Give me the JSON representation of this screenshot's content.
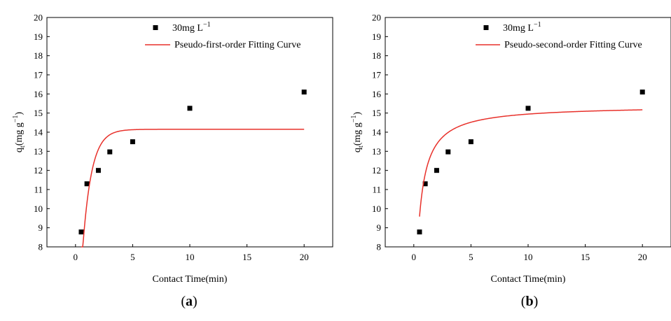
{
  "chart_data": [
    {
      "type": "scatter",
      "panel_label": "a",
      "xlabel": "Contact Time(min)",
      "ylabel": "q",
      "ylabel_sub": "t",
      "ylabel_unit": "(mg g",
      "ylabel_unit_exp": "−1",
      "ylabel_unit_close": ")",
      "xlim": [
        -2.5,
        22.5
      ],
      "ylim": [
        8,
        20
      ],
      "x_ticks": [
        0,
        5,
        10,
        15,
        20
      ],
      "y_ticks": [
        8,
        9,
        10,
        11,
        12,
        13,
        14,
        15,
        16,
        17,
        18,
        19,
        20
      ],
      "legend_position": "top-right",
      "series": [
        {
          "name": "30mg L",
          "name_sup": "−1",
          "kind": "points",
          "color": "#000000",
          "x": [
            0.5,
            1,
            2,
            3,
            5,
            10,
            20
          ],
          "y": [
            8.78,
            11.3,
            12.0,
            12.97,
            13.5,
            15.25,
            16.1
          ]
        },
        {
          "name": "Pseudo-first-order Fitting Curve",
          "kind": "fit",
          "model": "pseudo-first-order",
          "color": "#e8302a",
          "qe": 14.15,
          "k": 1.3,
          "x_range": [
            0.5,
            20
          ]
        }
      ]
    },
    {
      "type": "scatter",
      "panel_label": "b",
      "xlabel": "Contact Time(min)",
      "ylabel": "q",
      "ylabel_sub": "t",
      "ylabel_unit": "(mg g",
      "ylabel_unit_exp": "−1",
      "ylabel_unit_close": ")",
      "xlim": [
        -2.5,
        22.5
      ],
      "ylim": [
        8,
        20
      ],
      "x_ticks": [
        0,
        5,
        10,
        15,
        20
      ],
      "y_ticks": [
        8,
        9,
        10,
        11,
        12,
        13,
        14,
        15,
        16,
        17,
        18,
        19,
        20
      ],
      "legend_position": "top-right",
      "series": [
        {
          "name": "30mg L",
          "name_sup": "−1",
          "kind": "points",
          "color": "#000000",
          "x": [
            0.5,
            1,
            2,
            3,
            5,
            10,
            20
          ],
          "y": [
            8.78,
            11.3,
            12.0,
            12.97,
            13.5,
            15.25,
            16.1
          ]
        },
        {
          "name": "Pseudo-second-order Fitting Curve",
          "kind": "fit",
          "model": "pseudo-second-order",
          "color": "#e8302a",
          "qe": 15.4,
          "k": 0.214,
          "x_range": [
            0.5,
            20
          ]
        }
      ]
    }
  ]
}
